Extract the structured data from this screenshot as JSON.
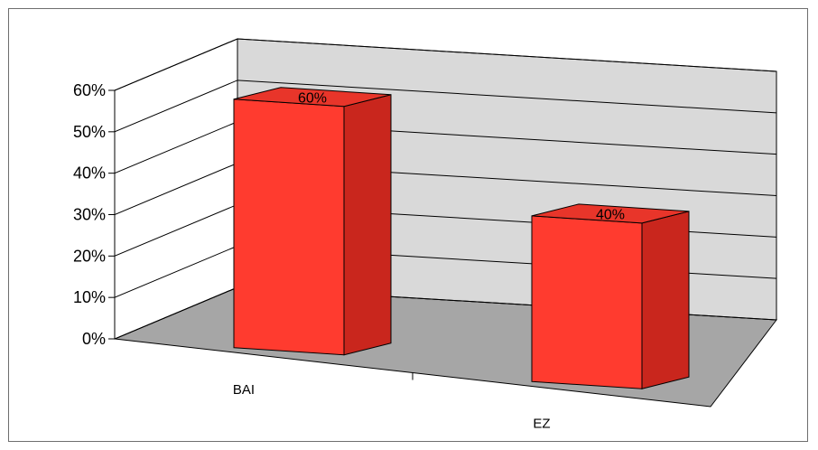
{
  "chart_data": {
    "type": "bar",
    "style": "3d-column",
    "title": "",
    "xlabel": "",
    "ylabel": "",
    "categories": [
      "BAI",
      "EZ"
    ],
    "values": [
      0.6,
      0.4
    ],
    "data_labels": [
      "60%",
      "40%"
    ],
    "y_ticks": [
      "0%",
      "10%",
      "20%",
      "30%",
      "40%",
      "50%",
      "60%"
    ],
    "ylim": [
      0,
      0.6
    ],
    "grid": true,
    "legend": "none",
    "colors": {
      "bar_front": "#ff3b2f",
      "bar_top": "#e8352a",
      "bar_side": "#c9261d",
      "back_wall": "#d9d9d9",
      "floor": "#a6a6a6",
      "outline": "#000000"
    }
  }
}
